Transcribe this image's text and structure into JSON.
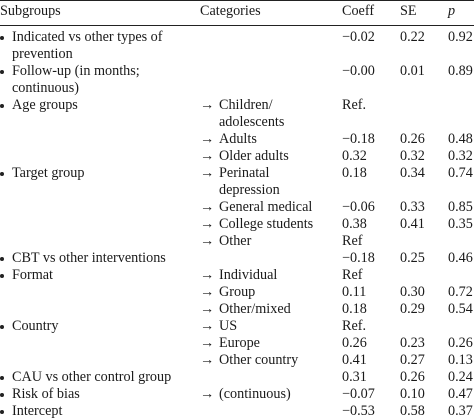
{
  "header": {
    "subgroups": "Subgroups",
    "categories": "Categories",
    "coeff": "Coeff",
    "se": "SE",
    "p": "p"
  },
  "rows": [
    {
      "sub": [
        "Indicated vs other types of",
        "prevention"
      ],
      "arrow": "",
      "cat": [],
      "coeff": "−0.02",
      "se": "0.22",
      "p": "0.92"
    },
    {
      "sub": [
        "Follow-up (in months;",
        "continuous)"
      ],
      "arrow": "",
      "cat": [],
      "coeff": "−0.00",
      "se": "0.01",
      "p": "0.89"
    },
    {
      "sub": [
        "Age groups"
      ],
      "arrow": "→",
      "cat": [
        "Children/",
        "adolescents"
      ],
      "coeff": "Ref.",
      "se": "",
      "p": ""
    },
    {
      "sub": [],
      "arrow": "→",
      "cat": [
        "Adults"
      ],
      "coeff": "−0.18",
      "se": "0.26",
      "p": "0.48"
    },
    {
      "sub": [],
      "arrow": "→",
      "cat": [
        "Older adults"
      ],
      "coeff": "0.32",
      "se": "0.32",
      "p": "0.32"
    },
    {
      "sub": [
        "Target group"
      ],
      "arrow": "→",
      "cat": [
        "Perinatal",
        "depression"
      ],
      "coeff": "0.18",
      "se": "0.34",
      "p": "0.74"
    },
    {
      "sub": [],
      "arrow": "→",
      "cat": [
        "General medical"
      ],
      "coeff": "−0.06",
      "se": "0.33",
      "p": "0.85"
    },
    {
      "sub": [],
      "arrow": "→",
      "cat": [
        "College students"
      ],
      "coeff": "0.38",
      "se": "0.41",
      "p": "0.35"
    },
    {
      "sub": [],
      "arrow": "→",
      "cat": [
        "Other"
      ],
      "coeff": "Ref",
      "se": "",
      "p": ""
    },
    {
      "sub": [
        "CBT vs other interventions"
      ],
      "arrow": "",
      "cat": [],
      "coeff": "−0.18",
      "se": "0.25",
      "p": "0.46"
    },
    {
      "sub": [
        "Format"
      ],
      "arrow": "→",
      "cat": [
        "Individual"
      ],
      "coeff": "Ref",
      "se": "",
      "p": ""
    },
    {
      "sub": [],
      "arrow": "→",
      "cat": [
        "Group"
      ],
      "coeff": "0.11",
      "se": "0.30",
      "p": "0.72"
    },
    {
      "sub": [],
      "arrow": "→",
      "cat": [
        "Other/mixed"
      ],
      "coeff": "0.18",
      "se": "0.29",
      "p": "0.54"
    },
    {
      "sub": [
        "Country"
      ],
      "arrow": "→",
      "cat": [
        "US"
      ],
      "coeff": "Ref.",
      "se": "",
      "p": ""
    },
    {
      "sub": [],
      "arrow": "→",
      "cat": [
        "Europe"
      ],
      "coeff": "0.26",
      "se": "0.23",
      "p": "0.26"
    },
    {
      "sub": [],
      "arrow": "→",
      "cat": [
        "Other country"
      ],
      "coeff": "0.41",
      "se": "0.27",
      "p": "0.13"
    },
    {
      "sub": [
        "CAU vs other control group"
      ],
      "arrow": "",
      "cat": [],
      "coeff": "0.31",
      "se": "0.26",
      "p": "0.24"
    },
    {
      "sub": [
        "Risk of bias"
      ],
      "arrow": "→",
      "cat": [
        "(continuous)"
      ],
      "coeff": "−0.07",
      "se": "0.10",
      "p": "0.47"
    },
    {
      "sub": [
        "Intercept"
      ],
      "arrow": "",
      "cat": [],
      "coeff": "−0.53",
      "se": "0.58",
      "p": "0.37"
    }
  ]
}
